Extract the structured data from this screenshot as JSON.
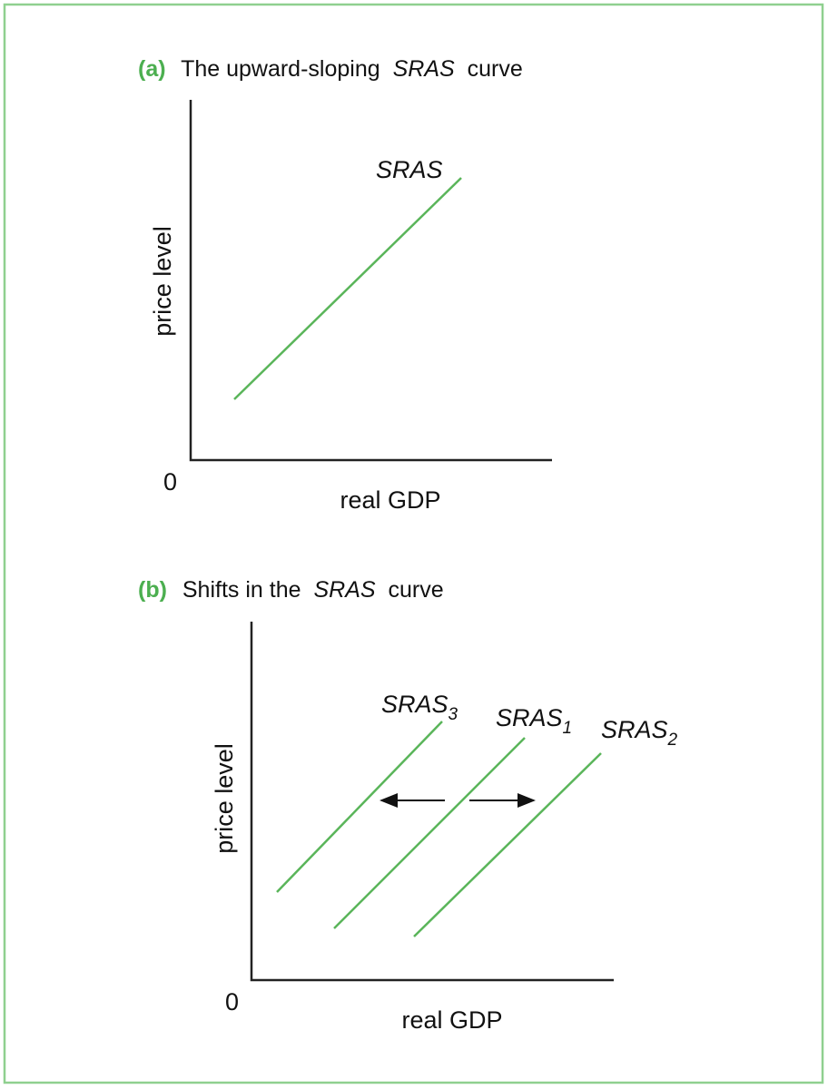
{
  "panels": [
    {
      "label": "(a)",
      "title": {
        "before": "The upward-sloping",
        "italic": "SRAS",
        "after": "curve"
      },
      "y_axis_label": "price level",
      "x_axis_label": "real GDP",
      "origin": "0",
      "curves": [
        {
          "name": "SRAS"
        }
      ]
    },
    {
      "label": "(b)",
      "title": {
        "before": "Shifts in the",
        "italic": "SRAS",
        "after": "curve"
      },
      "y_axis_label": "price level",
      "x_axis_label": "real GDP",
      "origin": "0",
      "curves": [
        {
          "name": "SRAS",
          "subscript": "3"
        },
        {
          "name": "SRAS",
          "subscript": "1"
        },
        {
          "name": "SRAS",
          "subscript": "2"
        }
      ]
    }
  ]
}
